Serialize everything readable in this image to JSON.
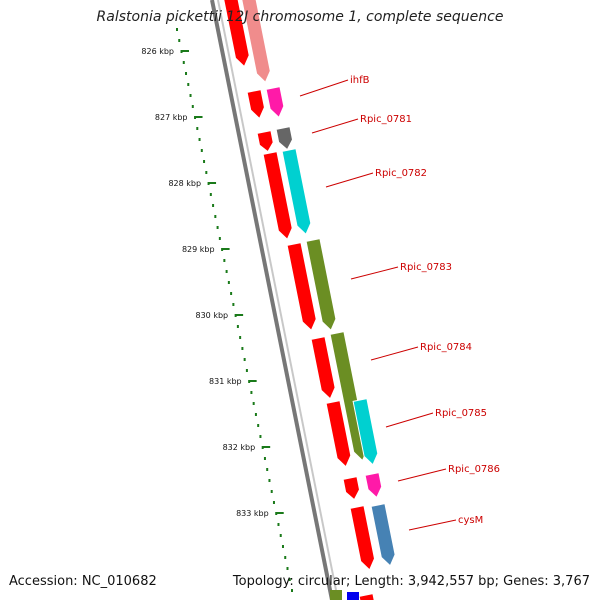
{
  "title": "Ralstonia pickettii 12J chromosome 1, complete sequence",
  "accession_text": "Accession: NC_010682",
  "stats_text": "Topology: circular; Length: 3,942,557 bp; Genes: 3,767",
  "colors": {
    "cds_strand": "#ff0000",
    "label": "#cc0000",
    "ticks": "#1a7a1a",
    "backbone": "#8c8c8c"
  },
  "tick_labels": [
    "826 kbp",
    "827 kbp",
    "828 kbp",
    "829 kbp",
    "830 kbp",
    "831 kbp",
    "832 kbp",
    "833 kbp"
  ],
  "genes": [
    {
      "name": "ihfB",
      "color": "#ff1aa8"
    },
    {
      "name": "Rpic_0781",
      "color": "#666666"
    },
    {
      "name": "Rpic_0782",
      "color": "#00d0d0"
    },
    {
      "name": "Rpic_0783",
      "color": "#6b8e23"
    },
    {
      "name": "Rpic_0784",
      "color": "#6b8e23"
    },
    {
      "name": "Rpic_0785",
      "color": "#00d0d0"
    },
    {
      "name": "Rpic_0786",
      "color": "#ff1aa8"
    },
    {
      "name": "cysM",
      "color": "#4682b4"
    }
  ]
}
